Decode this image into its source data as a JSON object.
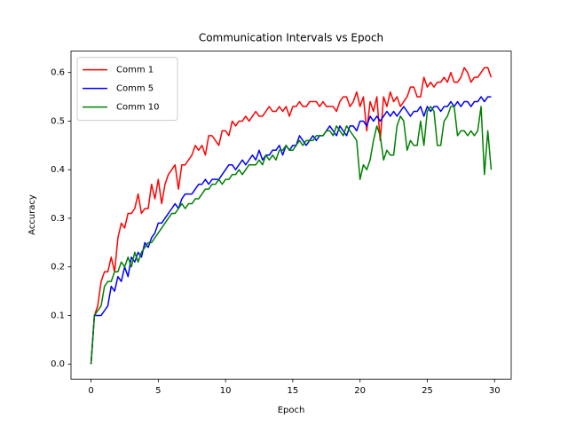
{
  "chart_data": {
    "type": "line",
    "title": "Communication Intervals vs Epoch",
    "x_label": "Epoch",
    "y_label": "Accuracy",
    "x": [
      0,
      0.25,
      0.5,
      0.75,
      1,
      1.25,
      1.5,
      1.75,
      2,
      2.25,
      2.5,
      2.75,
      3,
      3.25,
      3.5,
      3.75,
      4,
      4.25,
      4.5,
      4.75,
      5,
      5.25,
      5.5,
      5.75,
      6,
      6.25,
      6.5,
      6.75,
      7,
      7.25,
      7.5,
      7.75,
      8,
      8.25,
      8.5,
      8.75,
      9,
      9.25,
      9.5,
      9.75,
      10,
      10.25,
      10.5,
      10.75,
      11,
      11.25,
      11.5,
      11.75,
      12,
      12.25,
      12.5,
      12.75,
      13,
      13.25,
      13.5,
      13.75,
      14,
      14.25,
      14.5,
      14.75,
      15,
      15.25,
      15.5,
      15.75,
      16,
      16.25,
      16.5,
      16.75,
      17,
      17.25,
      17.5,
      17.75,
      18,
      18.25,
      18.5,
      18.75,
      19,
      19.25,
      19.5,
      19.75,
      20,
      20.25,
      20.5,
      20.75,
      21,
      21.25,
      21.5,
      21.75,
      22,
      22.25,
      22.5,
      22.75,
      23,
      23.25,
      23.5,
      23.75,
      24,
      24.25,
      24.5,
      24.75,
      25,
      25.25,
      25.5,
      25.75,
      26,
      26.25,
      26.5,
      26.75,
      27,
      27.25,
      27.5,
      27.75,
      28,
      28.25,
      28.5,
      28.75,
      29,
      29.25,
      29.5,
      29.75
    ],
    "series": [
      {
        "name": "Comm 1",
        "color": "#ff0000",
        "values": [
          0,
          0.1,
          0.12,
          0.17,
          0.19,
          0.19,
          0.22,
          0.19,
          0.26,
          0.29,
          0.28,
          0.31,
          0.31,
          0.32,
          0.35,
          0.31,
          0.32,
          0.32,
          0.37,
          0.34,
          0.38,
          0.33,
          0.37,
          0.39,
          0.4,
          0.41,
          0.36,
          0.41,
          0.41,
          0.42,
          0.43,
          0.45,
          0.44,
          0.45,
          0.43,
          0.47,
          0.47,
          0.46,
          0.45,
          0.48,
          0.48,
          0.47,
          0.5,
          0.49,
          0.5,
          0.5,
          0.51,
          0.5,
          0.51,
          0.52,
          0.51,
          0.51,
          0.52,
          0.53,
          0.52,
          0.52,
          0.53,
          0.52,
          0.53,
          0.51,
          0.53,
          0.53,
          0.54,
          0.53,
          0.53,
          0.54,
          0.54,
          0.54,
          0.53,
          0.54,
          0.53,
          0.53,
          0.53,
          0.52,
          0.54,
          0.55,
          0.55,
          0.53,
          0.54,
          0.56,
          0.53,
          0.55,
          0.48,
          0.54,
          0.52,
          0.55,
          0.46,
          0.55,
          0.53,
          0.56,
          0.54,
          0.55,
          0.53,
          0.54,
          0.55,
          0.57,
          0.57,
          0.55,
          0.55,
          0.59,
          0.57,
          0.58,
          0.57,
          0.58,
          0.58,
          0.59,
          0.58,
          0.6,
          0.58,
          0.58,
          0.59,
          0.61,
          0.6,
          0.58,
          0.59,
          0.59,
          0.6,
          0.61,
          0.61,
          0.59
        ]
      },
      {
        "name": "Comm 5",
        "color": "#0000ff",
        "values": [
          0,
          0.1,
          0.1,
          0.1,
          0.11,
          0.12,
          0.16,
          0.15,
          0.18,
          0.17,
          0.2,
          0.18,
          0.22,
          0.21,
          0.23,
          0.22,
          0.25,
          0.24,
          0.26,
          0.27,
          0.29,
          0.29,
          0.3,
          0.31,
          0.32,
          0.33,
          0.32,
          0.34,
          0.35,
          0.35,
          0.35,
          0.36,
          0.37,
          0.37,
          0.38,
          0.37,
          0.38,
          0.38,
          0.38,
          0.39,
          0.4,
          0.41,
          0.41,
          0.4,
          0.41,
          0.42,
          0.41,
          0.42,
          0.43,
          0.42,
          0.44,
          0.42,
          0.43,
          0.43,
          0.44,
          0.44,
          0.45,
          0.43,
          0.45,
          0.44,
          0.45,
          0.45,
          0.47,
          0.46,
          0.45,
          0.46,
          0.47,
          0.46,
          0.47,
          0.47,
          0.48,
          0.49,
          0.48,
          0.47,
          0.49,
          0.48,
          0.47,
          0.49,
          0.49,
          0.48,
          0.5,
          0.5,
          0.49,
          0.51,
          0.5,
          0.51,
          0.5,
          0.51,
          0.52,
          0.51,
          0.52,
          0.51,
          0.52,
          0.53,
          0.52,
          0.51,
          0.52,
          0.52,
          0.53,
          0.51,
          0.53,
          0.52,
          0.53,
          0.53,
          0.52,
          0.53,
          0.53,
          0.54,
          0.53,
          0.54,
          0.53,
          0.54,
          0.54,
          0.53,
          0.54,
          0.54,
          0.55,
          0.54,
          0.55,
          0.55
        ]
      },
      {
        "name": "Comm 10",
        "color": "#008000",
        "values": [
          0,
          0.1,
          0.11,
          0.12,
          0.16,
          0.17,
          0.17,
          0.19,
          0.19,
          0.21,
          0.2,
          0.22,
          0.2,
          0.23,
          0.21,
          0.23,
          0.24,
          0.25,
          0.25,
          0.26,
          0.27,
          0.28,
          0.29,
          0.3,
          0.31,
          0.31,
          0.32,
          0.33,
          0.32,
          0.33,
          0.33,
          0.34,
          0.34,
          0.35,
          0.36,
          0.36,
          0.37,
          0.37,
          0.38,
          0.37,
          0.38,
          0.38,
          0.39,
          0.39,
          0.4,
          0.39,
          0.4,
          0.41,
          0.41,
          0.41,
          0.42,
          0.41,
          0.43,
          0.42,
          0.43,
          0.42,
          0.44,
          0.44,
          0.45,
          0.44,
          0.44,
          0.45,
          0.46,
          0.45,
          0.46,
          0.46,
          0.46,
          0.47,
          0.47,
          0.47,
          0.48,
          0.48,
          0.47,
          0.49,
          0.48,
          0.47,
          0.49,
          0.48,
          0.47,
          0.46,
          0.38,
          0.41,
          0.4,
          0.42,
          0.46,
          0.49,
          0.47,
          0.42,
          0.44,
          0.43,
          0.43,
          0.49,
          0.51,
          0.5,
          0.44,
          0.46,
          0.45,
          0.45,
          0.5,
          0.45,
          0.52,
          0.53,
          0.52,
          0.45,
          0.45,
          0.5,
          0.51,
          0.53,
          0.53,
          0.47,
          0.48,
          0.48,
          0.47,
          0.48,
          0.47,
          0.48,
          0.53,
          0.39,
          0.48,
          0.4
        ]
      }
    ],
    "xlim": [
      -1.49,
      31.24
    ],
    "ylim": [
      -0.031,
      0.644
    ],
    "xticks": [
      0,
      5,
      10,
      15,
      20,
      25,
      30
    ],
    "yticks": [
      {
        "value": 0,
        "label": "0.0"
      },
      0.1,
      0.2,
      0.3,
      0.4,
      0.5,
      0.6
    ],
    "legend": "upper left"
  }
}
